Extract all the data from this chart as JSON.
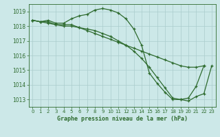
{
  "line1": [
    1018.4,
    1018.3,
    1018.4,
    1018.2,
    1018.2,
    1018.5,
    1018.7,
    1018.8,
    1019.1,
    1019.2,
    1019.1,
    1018.9,
    1018.5,
    1017.8,
    1016.7,
    1014.8,
    1014.1,
    1013.5,
    1013.0,
    1013.0,
    1013.1,
    1013.9,
    1015.3,
    null
  ],
  "line2": [
    1018.4,
    1018.3,
    1018.3,
    1018.1,
    1018.1,
    1018.1,
    1017.9,
    1017.7,
    1017.5,
    1017.3,
    1017.1,
    1016.9,
    1016.7,
    1016.5,
    1016.3,
    1016.1,
    1015.9,
    1015.7,
    1015.5,
    1015.3,
    1015.2,
    1015.2,
    1015.3,
    null
  ],
  "line3": [
    1018.4,
    1018.3,
    1018.2,
    1018.1,
    1018.0,
    1018.0,
    1017.9,
    1017.8,
    1017.7,
    1017.5,
    1017.3,
    1017.0,
    1016.7,
    1016.3,
    1015.8,
    1015.2,
    1014.5,
    1013.8,
    1013.1,
    1013.0,
    1012.9,
    1013.2,
    1013.4,
    1015.3
  ],
  "x": [
    0,
    1,
    2,
    3,
    4,
    5,
    6,
    7,
    8,
    9,
    10,
    11,
    12,
    13,
    14,
    15,
    16,
    17,
    18,
    19,
    20,
    21,
    22,
    23
  ],
  "line_color": "#2d6a2d",
  "marker": "+",
  "markersize": 3.5,
  "linewidth": 0.9,
  "ylim": [
    1012.5,
    1019.5
  ],
  "yticks": [
    1013,
    1014,
    1015,
    1016,
    1017,
    1018,
    1019
  ],
  "xticks": [
    0,
    1,
    2,
    3,
    4,
    5,
    6,
    7,
    8,
    9,
    10,
    11,
    12,
    13,
    14,
    15,
    16,
    17,
    18,
    19,
    20,
    21,
    22,
    23
  ],
  "bg_color": "#cce8e8",
  "grid_color": "#aacccc",
  "title": "Graphe pression niveau de la mer (hPa)",
  "title_fontsize": 6.0,
  "tick_fontsize": 5.0,
  "ylabel_fontsize": 5.5
}
